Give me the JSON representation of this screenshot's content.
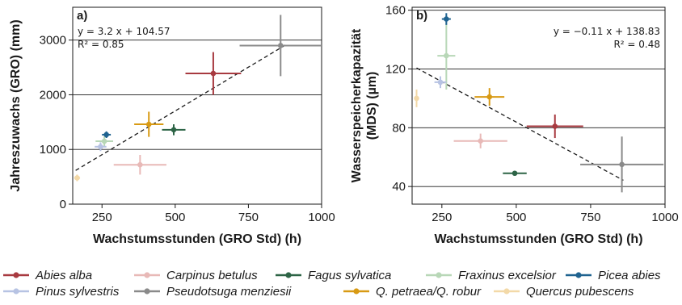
{
  "chart_data": [
    {
      "type": "scatter",
      "panel_label": "a)",
      "xlabel": "Wachstumsstunden (GRO Std) (h)",
      "ylabel": "Jahreszuwachs (GRO) (mm)",
      "xlim": [
        150,
        1000
      ],
      "ylim": [
        0,
        3600
      ],
      "xticks": [
        250,
        500,
        750,
        1000
      ],
      "yticks": [
        0,
        1000,
        2000,
        3000
      ],
      "grid": "horizontal",
      "annotation": [
        "y = 3.2 x + 104.57",
        "R² = 0.85"
      ],
      "annotation_position": "top-left",
      "regression": {
        "slope": 3.2,
        "intercept": 104.57,
        "x_range": [
          160,
          880
        ]
      },
      "series": [
        {
          "name": "Abies alba",
          "x": 630,
          "y": 2390,
          "xerr": 95,
          "yerr": 390
        },
        {
          "name": "Carpinus betulus",
          "x": 380,
          "y": 720,
          "xerr": 90,
          "yerr": 180
        },
        {
          "name": "Fagus sylvatica",
          "x": 495,
          "y": 1360,
          "xerr": 40,
          "yerr": 100
        },
        {
          "name": "Fraxinus excelsior",
          "x": 258,
          "y": 1150,
          "xerr": 30,
          "yerr": 90
        },
        {
          "name": "Picea abies",
          "x": 265,
          "y": 1270,
          "xerr": 15,
          "yerr": 60
        },
        {
          "name": "Pinus sylvestris",
          "x": 245,
          "y": 1050,
          "xerr": 20,
          "yerr": 80
        },
        {
          "name": "Pseudotsuga menziesii",
          "x": 860,
          "y": 2900,
          "xerr": 140,
          "yerr": 560
        },
        {
          "name": "Q. petraea/Q. robur",
          "x": 410,
          "y": 1460,
          "xerr": 50,
          "yerr": 230
        },
        {
          "name": "Quercus pubescens",
          "x": 165,
          "y": 480,
          "xerr": 10,
          "yerr": 60
        }
      ]
    },
    {
      "type": "scatter",
      "panel_label": "b)",
      "xlabel": "Wachstumsstunden (GRO Std) (h)",
      "ylabel": [
        "Wasserspeicherkapazität",
        "(MDS) (µm)"
      ],
      "xlim": [
        150,
        1000
      ],
      "ylim": [
        28,
        162
      ],
      "xticks": [
        250,
        500,
        750,
        1000
      ],
      "yticks": [
        40,
        80,
        120,
        160
      ],
      "grid": "horizontal",
      "annotation": [
        "y = −0.11 x + 138.83",
        "R² = 0.48"
      ],
      "annotation_position": "top-right",
      "regression": {
        "slope": -0.11,
        "intercept": 138.83,
        "x_range": [
          165,
          860
        ]
      },
      "series": [
        {
          "name": "Abies alba",
          "x": 630,
          "y": 81,
          "xerr": 95,
          "yerr": 8
        },
        {
          "name": "Carpinus betulus",
          "x": 380,
          "y": 71,
          "xerr": 90,
          "yerr": 5
        },
        {
          "name": "Fagus sylvatica",
          "x": 495,
          "y": 49,
          "xerr": 40,
          "yerr": 1.5
        },
        {
          "name": "Fraxinus excelsior",
          "x": 265,
          "y": 129,
          "xerr": 30,
          "yerr": 23
        },
        {
          "name": "Picea abies",
          "x": 265,
          "y": 154,
          "xerr": 15,
          "yerr": 4
        },
        {
          "name": "Pinus sylvestris",
          "x": 245,
          "y": 111,
          "xerr": 20,
          "yerr": 4
        },
        {
          "name": "Pseudotsuga menziesii",
          "x": 855,
          "y": 55,
          "xerr": 140,
          "yerr": 19
        },
        {
          "name": "Q. petraea/Q. robur",
          "x": 410,
          "y": 101,
          "xerr": 50,
          "yerr": 6
        },
        {
          "name": "Quercus pubescens",
          "x": 165,
          "y": 100,
          "xerr": 8,
          "yerr": 6
        }
      ]
    }
  ],
  "legend": {
    "position": "bottom",
    "entries": [
      {
        "name": "Abies alba",
        "color": "#a83a40"
      },
      {
        "name": "Carpinus betulus",
        "color": "#e8b9b7"
      },
      {
        "name": "Fagus sylvatica",
        "color": "#2d6446"
      },
      {
        "name": "Fraxinus excelsior",
        "color": "#b8d7b7"
      },
      {
        "name": "Picea abies",
        "color": "#1f6390"
      },
      {
        "name": "Pinus sylvestris",
        "color": "#b7c3e3"
      },
      {
        "name": "Pseudotsuga menziesii",
        "color": "#8a8a8a"
      },
      {
        "name": "Q. petraea/Q. robur",
        "color": "#d89a14"
      },
      {
        "name": "Quercus pubescens",
        "color": "#f3d9a8"
      }
    ]
  }
}
